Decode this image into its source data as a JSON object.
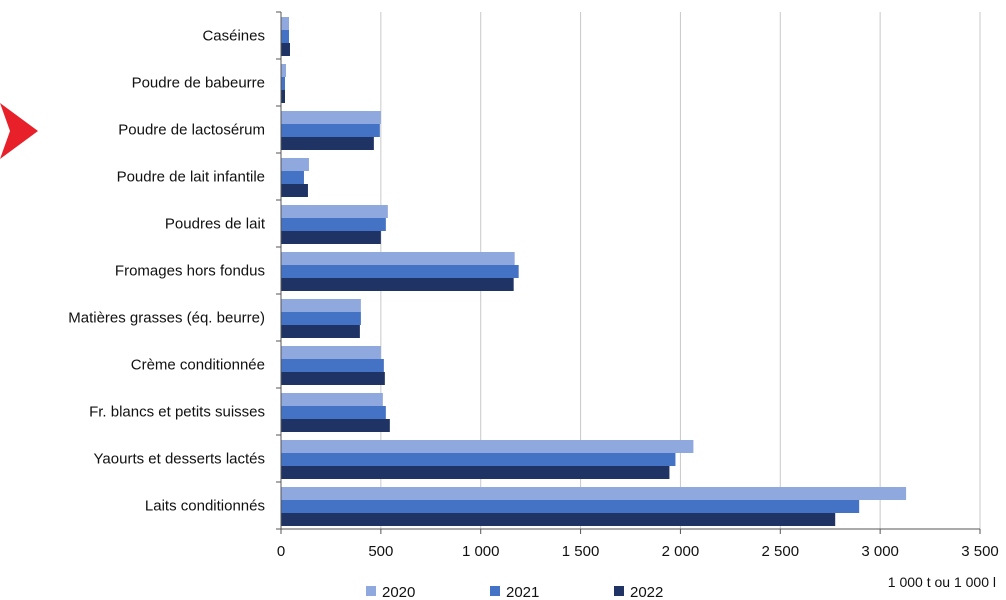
{
  "chart_data": {
    "type": "bar",
    "orientation": "horizontal",
    "categories": [
      "Caséines",
      "Poudre de babeurre",
      "Poudre de lactosérum",
      "Poudre de lait infantile",
      "Poudres de lait",
      "Fromages hors fondus",
      "Matières grasses (éq. beurre)",
      "Crème conditionnée",
      "Fr. blancs et petits suisses",
      "Yaourts et desserts lactés",
      "Laits conditionnés"
    ],
    "series": [
      {
        "name": "2020",
        "color": "#8fa8de",
        "values": [
          40,
          25,
          500,
          140,
          535,
          1170,
          400,
          500,
          510,
          2065,
          3130
        ]
      },
      {
        "name": "2021",
        "color": "#4472c4",
        "values": [
          40,
          20,
          495,
          115,
          525,
          1190,
          400,
          515,
          525,
          1975,
          2895
        ]
      },
      {
        "name": "2022",
        "color": "#1f3464",
        "values": [
          45,
          20,
          465,
          135,
          500,
          1165,
          395,
          520,
          545,
          1945,
          2775
        ]
      }
    ],
    "xlim": [
      0,
      3500
    ],
    "xticks": [
      0,
      500,
      1000,
      1500,
      2000,
      2500,
      3000,
      3500
    ],
    "xtick_labels": [
      "0",
      "500",
      "1 000",
      "1 500",
      "2 000",
      "2 500",
      "3 000",
      "3 500"
    ],
    "unit_label": "1 000 t ou 1 000 l",
    "grid": "vertical",
    "legend_position": "bottom",
    "marker_color": "#e8202a"
  }
}
